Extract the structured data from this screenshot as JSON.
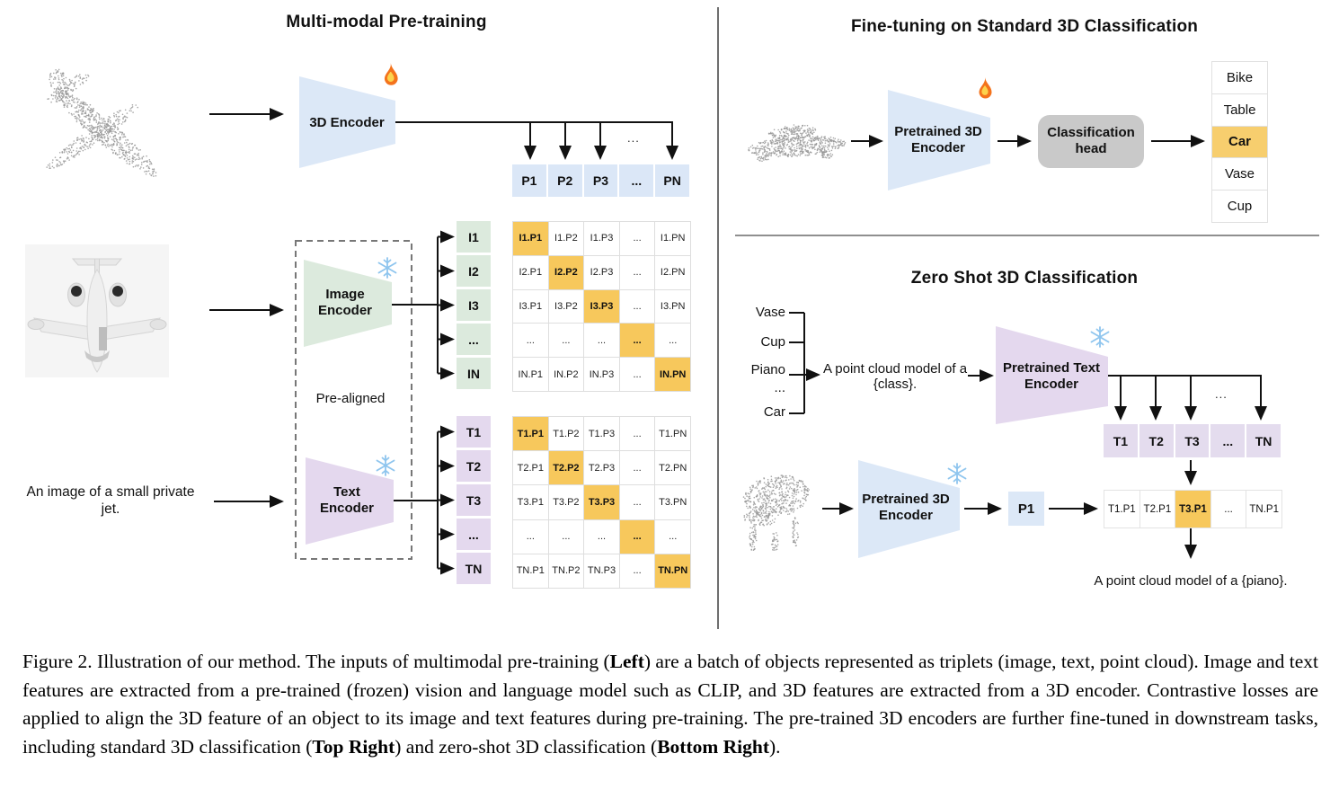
{
  "figure": {
    "left": {
      "title": "Multi-modal Pre-training",
      "encoder_3d_label": "3D Encoder",
      "image_encoder_label": "Image Encoder",
      "text_encoder_label": "Text Encoder",
      "pre_aligned_label": "Pre-aligned",
      "image_caption": "An image of a small private jet.",
      "ellipsis": "...",
      "p_row": [
        "P1",
        "P2",
        "P3",
        "...",
        "PN"
      ],
      "image_rows": [
        "I1",
        "I2",
        "I3",
        "...",
        "IN"
      ],
      "image_matrix": [
        [
          "I1.P1",
          "I1.P2",
          "I1.P3",
          "...",
          "I1.PN"
        ],
        [
          "I2.P1",
          "I2.P2",
          "I2.P3",
          "...",
          "I2.PN"
        ],
        [
          "I3.P1",
          "I3.P2",
          "I3.P3",
          "...",
          "I3.PN"
        ],
        [
          "...",
          "...",
          "...",
          "...",
          "..."
        ],
        [
          "IN.P1",
          "IN.P2",
          "IN.P3",
          "...",
          "IN.PN"
        ]
      ],
      "text_rows": [
        "T1",
        "T2",
        "T3",
        "...",
        "TN"
      ],
      "text_matrix": [
        [
          "T1.P1",
          "T1.P2",
          "T1.P3",
          "...",
          "T1.PN"
        ],
        [
          "T2.P1",
          "T2.P2",
          "T2.P3",
          "...",
          "T2.PN"
        ],
        [
          "T3.P1",
          "T3.P2",
          "T3.P3",
          "...",
          "T3.PN"
        ],
        [
          "...",
          "...",
          "...",
          "...",
          "..."
        ],
        [
          "TN.P1",
          "TN.P2",
          "TN.P3",
          "...",
          "TN.PN"
        ]
      ]
    },
    "top_right": {
      "title": "Fine-tuning on Standard 3D Classification",
      "encoder_label": "Pretrained 3D Encoder",
      "head_label": "Classification head",
      "classes": [
        "Bike",
        "Table",
        "Car",
        "Vase",
        "Cup"
      ],
      "predicted_index": 2
    },
    "bottom_right": {
      "title": "Zero Shot 3D Classification",
      "classes": [
        "Vase",
        "Cup",
        "Piano",
        "...",
        "Car"
      ],
      "prompt": "A point cloud model of a {class}.",
      "text_encoder_label": "Pretrained Text Encoder",
      "encoder_3d_label": "Pretrained 3D Encoder",
      "t_row": [
        "T1",
        "T2",
        "T3",
        "...",
        "TN"
      ],
      "p1_label": "P1",
      "result_row": [
        "T1.P1",
        "T2.P1",
        "T3.P1",
        "...",
        "TN.P1"
      ],
      "result_highlight_index": 2,
      "ellipsis": "...",
      "piano_prompt": "A point cloud model of a {piano}."
    }
  },
  "colors": {
    "encoder_blue": "#dce8f7",
    "encoder_green": "#dceadd",
    "encoder_purple": "#e4d8ee",
    "highlight_orange": "#f7c85c",
    "head_gray": "#c9c9c9"
  },
  "caption": {
    "segments": [
      {
        "text": "Figure 2. Illustration of our method. The inputs of multimodal pre-training (",
        "bold": false
      },
      {
        "text": "Left",
        "bold": true
      },
      {
        "text": ") are a batch of objects represented as triplets (image, text, point cloud). Image and text features are extracted from a pre-trained (frozen) vision and language model such as CLIP, and 3D features are extracted from a 3D encoder. Contrastive losses are applied to align the 3D feature of an object to its image and text features during pre-training. The pre-trained 3D encoders are further fine-tuned in downstream tasks, including standard 3D classification (",
        "bold": false
      },
      {
        "text": "Top Right",
        "bold": true
      },
      {
        "text": ") and zero-shot 3D classification (",
        "bold": false
      },
      {
        "text": "Bottom Right",
        "bold": true
      },
      {
        "text": ").",
        "bold": false
      }
    ]
  }
}
